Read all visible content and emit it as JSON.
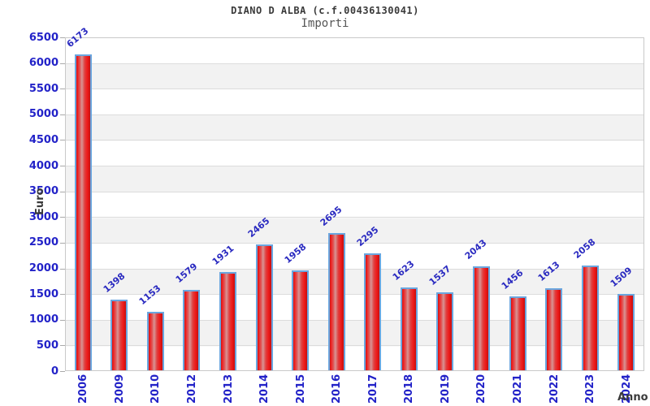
{
  "chart_data": {
    "type": "bar",
    "title": "DIANO D ALBA (c.f.00436130041)",
    "subtitle": "Importi",
    "xlabel": "Anno",
    "ylabel": "Euro",
    "categories": [
      "2006",
      "2009",
      "2010",
      "2012",
      "2013",
      "2014",
      "2015",
      "2016",
      "2017",
      "2018",
      "2019",
      "2020",
      "2021",
      "2022",
      "2023",
      "2024"
    ],
    "values": [
      6173,
      1398,
      1153,
      1579,
      1931,
      2465,
      1958,
      2695,
      2295,
      1623,
      1537,
      2043,
      1456,
      1613,
      2058,
      1509
    ],
    "ylim": [
      0,
      6500
    ],
    "ytick_step": 500,
    "legend": "none",
    "grid": "horizontal-bands-alternating",
    "value_labels": "above-bars-rotated",
    "colors": {
      "bar_fill": "#e61515",
      "bar_highlight": "#d89494",
      "bar_border": "#6aa6df",
      "tick_label_blue": "#2222c8",
      "band_gray": "#f2f2f2",
      "gridline": "#dcdcdc",
      "axis_title_text": "#3a3a3a",
      "title_text": "#3a3a3a",
      "subtitle_text": "#555555"
    }
  }
}
